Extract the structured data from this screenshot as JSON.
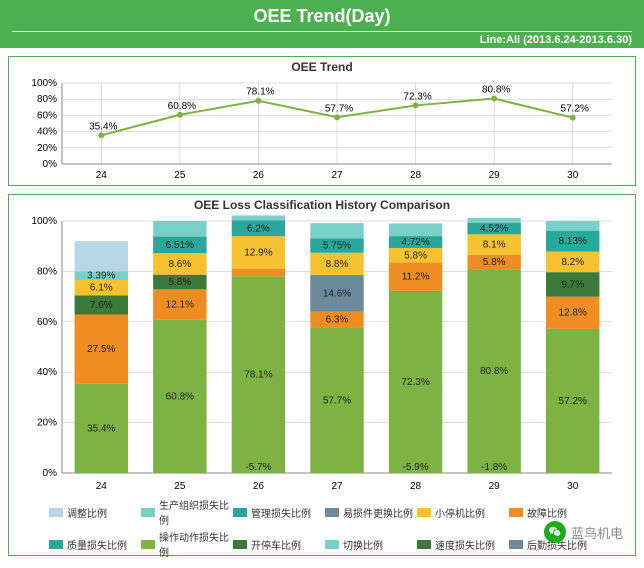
{
  "header": {
    "title": "OEE Trend(Day)",
    "subtitle": "Line:All (2013.6.24-2013.6.30)"
  },
  "trend_chart": {
    "title": "OEE Trend",
    "categories": [
      "24",
      "25",
      "26",
      "27",
      "28",
      "29",
      "30"
    ],
    "values": [
      35.4,
      60.8,
      78.1,
      57.7,
      72.3,
      80.8,
      57.2
    ],
    "point_labels": [
      "35.4%",
      "60.8%",
      "78.1%",
      "57.7%",
      "72.3%",
      "80.8%",
      "57.2%"
    ],
    "ylim": [
      0,
      100
    ],
    "ytick_step": 20,
    "yticks": [
      "0%",
      "20%",
      "40%",
      "60%",
      "80%",
      "100%"
    ],
    "line_color": "#7cb342",
    "marker_color": "#7cb342",
    "grid_color": "#bdbdbd",
    "label_fontsize": 10,
    "background": "#ffffff"
  },
  "loss_chart": {
    "title": "OEE Loss Classification History Comparison",
    "categories": [
      "24",
      "25",
      "26",
      "27",
      "28",
      "29",
      "30"
    ],
    "ylim": [
      0,
      100
    ],
    "ytick_step": 20,
    "yticks": [
      "0%",
      "20%",
      "40%",
      "60%",
      "80%",
      "100%"
    ],
    "grid_color": "#bdbdbd",
    "background": "#ffffff",
    "bar_width": 0.68,
    "label_fontsize": 10,
    "colors": {
      "green": "#7cb342",
      "orange": "#ef8d22",
      "darkgreen": "#3b7a3b",
      "yellow": "#f6c22f",
      "teal": "#2aa79b",
      "ltteal": "#79d0c8",
      "slate": "#6d8a9c",
      "ltblue": "#b7d6e6"
    },
    "stacks": [
      [
        {
          "c": "green",
          "v": 35.4,
          "l": "35.4%"
        },
        {
          "c": "orange",
          "v": 27.5,
          "l": "27.5%"
        },
        {
          "c": "darkgreen",
          "v": 7.6,
          "l": "7.6%"
        },
        {
          "c": "yellow",
          "v": 6.1,
          "l": "6.1%"
        },
        {
          "c": "ltteal",
          "v": 3.39,
          "l": "3.39%"
        },
        {
          "c": "ltblue",
          "v": 12.0,
          "l": ""
        }
      ],
      [
        {
          "c": "green",
          "v": 60.8,
          "l": "60.8%"
        },
        {
          "c": "orange",
          "v": 12.1,
          "l": "12.1%"
        },
        {
          "c": "darkgreen",
          "v": 5.8,
          "l": "5.8%"
        },
        {
          "c": "yellow",
          "v": 8.6,
          "l": "8.6%"
        },
        {
          "c": "teal",
          "v": 6.51,
          "l": "6.51%"
        },
        {
          "c": "ltteal",
          "v": 6.2,
          "l": ""
        }
      ],
      [
        {
          "c": "green",
          "v": 78.1,
          "l": "78.1%",
          "below": "-5.7%"
        },
        {
          "c": "orange",
          "v": 3.0,
          "l": ""
        },
        {
          "c": "yellow",
          "v": 12.9,
          "l": "12.9%"
        },
        {
          "c": "teal",
          "v": 6.2,
          "l": "6.2%"
        },
        {
          "c": "ltteal",
          "v": 2.0,
          "l": ""
        }
      ],
      [
        {
          "c": "green",
          "v": 57.7,
          "l": "57.7%"
        },
        {
          "c": "orange",
          "v": 6.3,
          "l": "6.3%"
        },
        {
          "c": "slate",
          "v": 14.6,
          "l": "14.6%"
        },
        {
          "c": "yellow",
          "v": 8.8,
          "l": "8.8%"
        },
        {
          "c": "teal",
          "v": 5.75,
          "l": "5.75%"
        },
        {
          "c": "ltteal",
          "v": 6.0,
          "l": ""
        }
      ],
      [
        {
          "c": "green",
          "v": 72.3,
          "l": "72.3%",
          "below": "-5.9%"
        },
        {
          "c": "orange",
          "v": 11.2,
          "l": "11.2%"
        },
        {
          "c": "yellow",
          "v": 5.8,
          "l": "5.8%"
        },
        {
          "c": "teal",
          "v": 4.72,
          "l": "4.72%"
        },
        {
          "c": "ltteal",
          "v": 5.0,
          "l": ""
        }
      ],
      [
        {
          "c": "green",
          "v": 80.8,
          "l": "80.8%",
          "below": "-1.8%"
        },
        {
          "c": "orange",
          "v": 5.8,
          "l": "5.8%"
        },
        {
          "c": "yellow",
          "v": 8.1,
          "l": "8.1%"
        },
        {
          "c": "teal",
          "v": 4.52,
          "l": "4.52%"
        },
        {
          "c": "ltteal",
          "v": 2.0,
          "l": ""
        }
      ],
      [
        {
          "c": "green",
          "v": 57.2,
          "l": "57.2%"
        },
        {
          "c": "orange",
          "v": 12.8,
          "l": "12.8%"
        },
        {
          "c": "darkgreen",
          "v": 9.7,
          "l": "9.7%"
        },
        {
          "c": "yellow",
          "v": 8.2,
          "l": "8.2%"
        },
        {
          "c": "teal",
          "v": 8.13,
          "l": "8.13%"
        },
        {
          "c": "ltteal",
          "v": 4.0,
          "l": ""
        }
      ]
    ],
    "legend": [
      {
        "c": "ltblue",
        "t": "调整比例"
      },
      {
        "c": "ltteal",
        "t": "生产组织损失比例"
      },
      {
        "c": "teal",
        "t": "管理损失比例"
      },
      {
        "c": "slate",
        "t": "易损件更换比例"
      },
      {
        "c": "yellow",
        "t": "小停机比例"
      },
      {
        "c": "orange",
        "t": "故障比例"
      },
      {
        "c": "teal",
        "t": "质量损失比例"
      },
      {
        "c": "green",
        "t": "操作动作损失比例"
      },
      {
        "c": "darkgreen",
        "t": "开停车比例"
      },
      {
        "c": "ltteal",
        "t": "切换比例"
      },
      {
        "c": "darkgreen",
        "t": "速度损失比例"
      },
      {
        "c": "slate",
        "t": "后勤损失比例"
      }
    ]
  },
  "watermark": {
    "text": "蓝鸟机电"
  }
}
